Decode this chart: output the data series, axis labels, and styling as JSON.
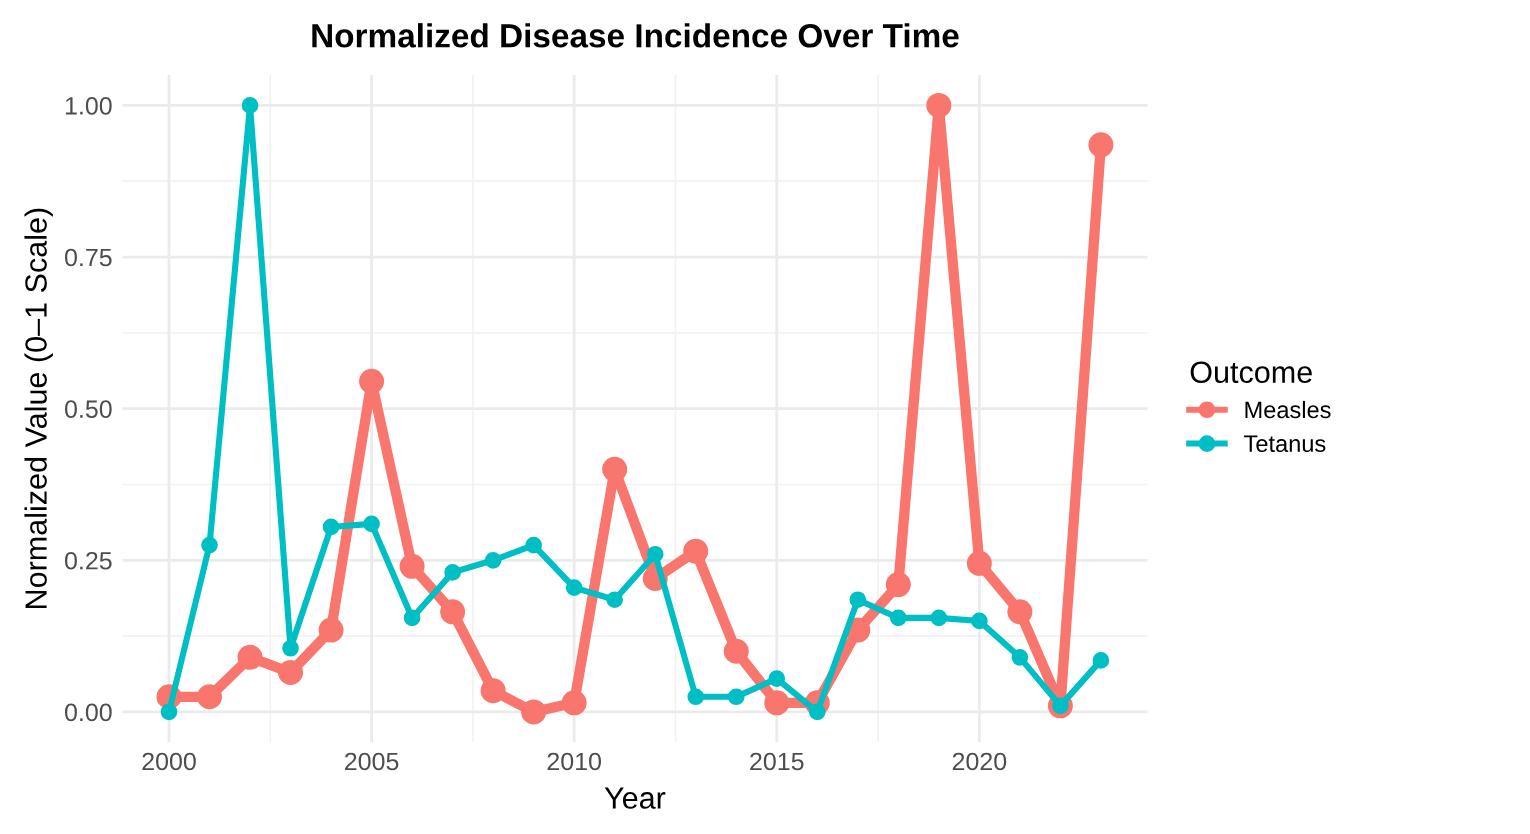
{
  "chart_data": {
    "type": "line",
    "title": "Normalized Disease Incidence Over Time",
    "xlabel": "Year",
    "ylabel": "Normalized Value (0–1 Scale)",
    "legend_title": "Outcome",
    "legend": "right",
    "grid": true,
    "marker": "circle",
    "line_style": "solid",
    "x": [
      2000,
      2001,
      2002,
      2003,
      2004,
      2005,
      2006,
      2007,
      2008,
      2009,
      2010,
      2011,
      2012,
      2013,
      2014,
      2015,
      2016,
      2017,
      2018,
      2019,
      2020,
      2021,
      2022,
      2023
    ],
    "xlim": [
      1998.85,
      2024.15
    ],
    "xticks": [
      2000,
      2005,
      2010,
      2015,
      2020
    ],
    "ylim": [
      -0.05,
      1.05
    ],
    "yticks": [
      {
        "value": 0,
        "label": "0.00"
      },
      {
        "value": 0.25,
        "label": "0.25"
      },
      {
        "value": 0.5,
        "label": "0.50"
      },
      {
        "value": 0.75,
        "label": "0.75"
      },
      {
        "value": 1,
        "label": "1.00"
      }
    ],
    "series": [
      {
        "name": "Measles",
        "color": "#f8766d",
        "values": [
          0.025,
          0.025,
          0.09,
          0.065,
          0.135,
          0.545,
          0.24,
          0.165,
          0.035,
          0,
          0.015,
          0.4,
          0.22,
          0.265,
          0.1,
          0.015,
          0.015,
          0.135,
          0.21,
          1,
          0.245,
          0.165,
          0.01,
          0.935
        ]
      },
      {
        "name": "Tetanus",
        "color": "#00bfc4",
        "values": [
          0,
          0.275,
          1,
          0.105,
          0.305,
          0.31,
          0.155,
          0.23,
          0.25,
          0.275,
          0.205,
          0.185,
          0.26,
          0.025,
          0.025,
          0.055,
          0,
          0.185,
          0.155,
          0.155,
          0.15,
          0.09,
          0.01,
          0.085
        ]
      }
    ]
  }
}
